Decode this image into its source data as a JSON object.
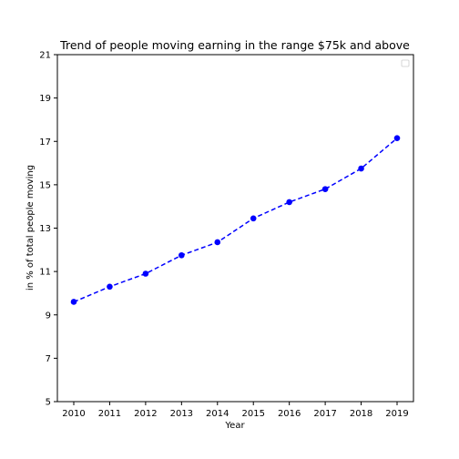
{
  "chart_data": {
    "type": "line",
    "title": "Trend of people moving earning in the range $75k and above",
    "xlabel": "Year",
    "ylabel": "in % of total people moving",
    "x": [
      "2010",
      "2011",
      "2012",
      "2013",
      "2014",
      "2015",
      "2016",
      "2017",
      "2018",
      "2019"
    ],
    "series": [
      {
        "values": [
          9.6,
          10.3,
          10.9,
          11.75,
          12.35,
          13.45,
          14.2,
          14.8,
          15.75,
          17.15
        ],
        "color": "#0000ff",
        "line_style": "dashed",
        "marker": "circle"
      }
    ],
    "ylim": [
      5,
      21
    ],
    "yticks": [
      "5",
      "7",
      "9",
      "11",
      "13",
      "15",
      "17",
      "19",
      "21"
    ],
    "grid": false,
    "legend": "top-right"
  }
}
